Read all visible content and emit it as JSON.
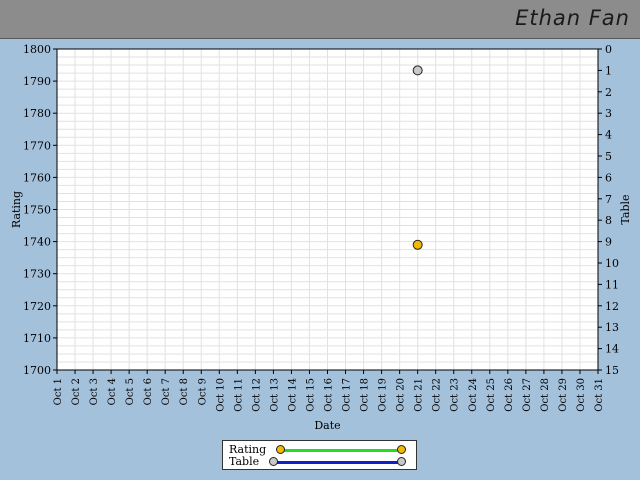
{
  "header": {
    "name": "Ethan Fan"
  },
  "colors": {
    "background": "#a4c1dc",
    "header": "#8c8c8c",
    "plot_bg": "#ffffff",
    "grid": "#e2e2e2",
    "rating_line": "#22dd22",
    "rating_marker": "#f5b800",
    "table_line": "#1020c8",
    "table_marker": "#c8c8c8"
  },
  "legend": {
    "items": [
      {
        "label": "Rating",
        "line_color": "#22dd22",
        "marker_color": "#f5b800"
      },
      {
        "label": "Table",
        "line_color": "#1020c8",
        "marker_color": "#c8c8c8"
      }
    ]
  },
  "chart_data": {
    "type": "line",
    "xlabel": "Date",
    "ylabel": "Rating",
    "y2label": "Table",
    "categories": [
      "Oct 1",
      "Oct 2",
      "Oct 3",
      "Oct 4",
      "Oct 5",
      "Oct 6",
      "Oct 7",
      "Oct 8",
      "Oct 9",
      "Oct 10",
      "Oct 11",
      "Oct 12",
      "Oct 13",
      "Oct 14",
      "Oct 15",
      "Oct 16",
      "Oct 17",
      "Oct 18",
      "Oct 19",
      "Oct 20",
      "Oct 21",
      "Oct 22",
      "Oct 23",
      "Oct 24",
      "Oct 25",
      "Oct 26",
      "Oct 27",
      "Oct 28",
      "Oct 29",
      "Oct 30",
      "Oct 31"
    ],
    "ylim": [
      1700,
      1800
    ],
    "yticks": [
      1700,
      1710,
      1720,
      1730,
      1740,
      1750,
      1760,
      1770,
      1780,
      1790,
      1800
    ],
    "y2lim": [
      0,
      15
    ],
    "y2_reversed": true,
    "y2ticks": [
      0,
      1,
      2,
      3,
      4,
      5,
      6,
      7,
      8,
      9,
      10,
      11,
      12,
      13,
      14,
      15
    ],
    "grid": true,
    "legend_position": "bottom-center",
    "series": [
      {
        "name": "Rating",
        "axis": "left",
        "points": [
          {
            "x": "Oct 21",
            "y": 1739
          }
        ]
      },
      {
        "name": "Table",
        "axis": "right",
        "points": [
          {
            "x": "Oct 21",
            "y": 1
          }
        ]
      }
    ]
  }
}
